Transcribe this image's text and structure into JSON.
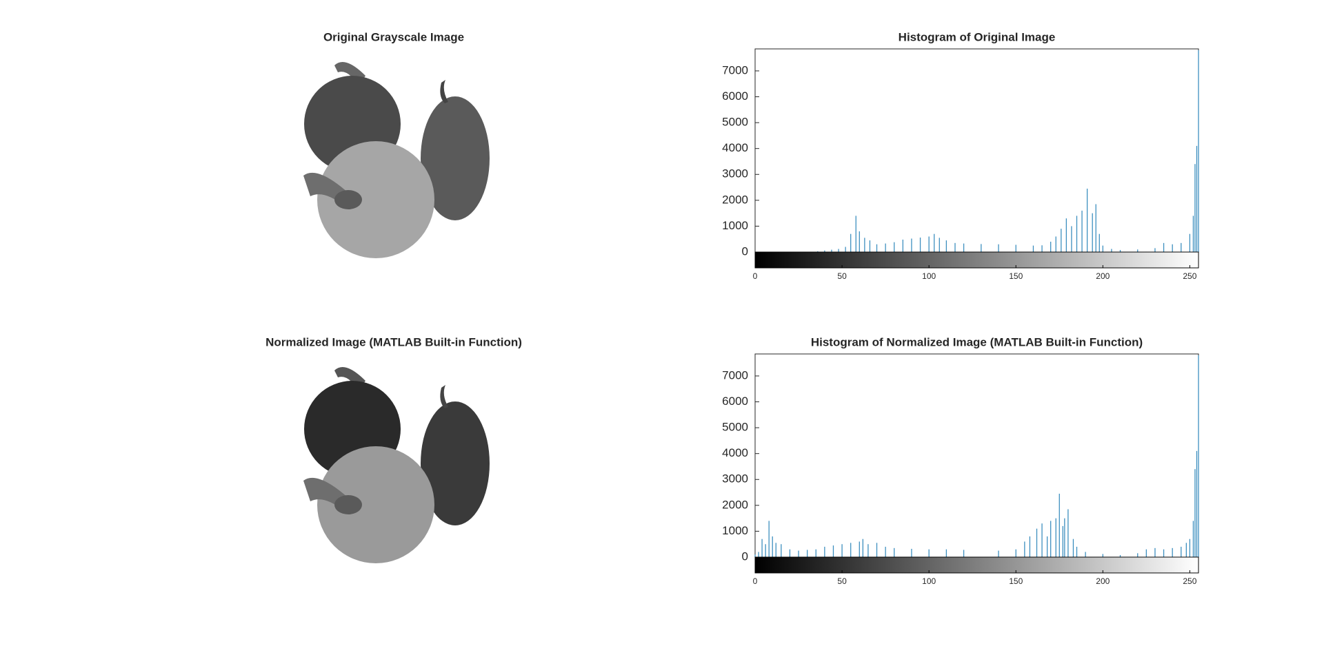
{
  "chart_data": [
    {
      "type": "image",
      "title": "Original Grayscale Image",
      "tone": "original"
    },
    {
      "type": "bar",
      "title": "Histogram of Original Image",
      "color": "#3d8fbf",
      "x": [
        36,
        40,
        44,
        48,
        52,
        55,
        58,
        60,
        63,
        66,
        70,
        75,
        80,
        85,
        90,
        95,
        100,
        103,
        106,
        110,
        115,
        120,
        130,
        140,
        150,
        160,
        165,
        170,
        173,
        176,
        179,
        182,
        185,
        188,
        191,
        194,
        196,
        198,
        200,
        205,
        210,
        220,
        230,
        235,
        240,
        245,
        250,
        252,
        253,
        254,
        255
      ],
      "values": [
        30,
        60,
        90,
        120,
        200,
        700,
        1400,
        800,
        550,
        450,
        300,
        330,
        380,
        480,
        520,
        560,
        600,
        700,
        550,
        450,
        350,
        330,
        310,
        300,
        280,
        250,
        260,
        400,
        600,
        900,
        1300,
        1000,
        1400,
        1600,
        2450,
        1500,
        1850,
        700,
        250,
        120,
        80,
        100,
        150,
        350,
        300,
        350,
        700,
        1400,
        3400,
        4100,
        7800
      ],
      "xlim": [
        0,
        255
      ],
      "xticks": [
        0,
        50,
        100,
        150,
        200,
        250
      ],
      "ylim": [
        0,
        7850
      ],
      "yticks": [
        0,
        1000,
        2000,
        3000,
        4000,
        5000,
        6000,
        7000
      ]
    },
    {
      "type": "image",
      "title": "Normalized Image (MATLAB Built-in Function)",
      "tone": "normalized"
    },
    {
      "type": "bar",
      "title": "Histogram of Normalized Image (MATLAB Built-in Function)",
      "color": "#3d8fbf",
      "x": [
        0,
        2,
        4,
        6,
        8,
        10,
        12,
        15,
        20,
        25,
        30,
        35,
        40,
        45,
        50,
        55,
        60,
        62,
        65,
        70,
        75,
        80,
        90,
        100,
        110,
        120,
        140,
        150,
        155,
        158,
        162,
        165,
        168,
        170,
        173,
        175,
        177,
        178,
        180,
        183,
        185,
        190,
        200,
        210,
        220,
        225,
        230,
        235,
        240,
        245,
        248,
        250,
        252,
        253,
        254,
        255
      ],
      "values": [
        100,
        200,
        700,
        500,
        1400,
        800,
        550,
        500,
        300,
        250,
        280,
        300,
        400,
        450,
        500,
        550,
        600,
        700,
        500,
        550,
        400,
        350,
        320,
        300,
        300,
        280,
        250,
        300,
        600,
        800,
        1100,
        1300,
        800,
        1400,
        1500,
        2450,
        1200,
        1500,
        1850,
        700,
        400,
        200,
        120,
        80,
        150,
        300,
        350,
        300,
        350,
        400,
        550,
        700,
        1400,
        3400,
        4100,
        7800
      ],
      "xlim": [
        0,
        255
      ],
      "xticks": [
        0,
        50,
        100,
        150,
        200,
        250
      ],
      "ylim": [
        0,
        7850
      ],
      "yticks": [
        0,
        1000,
        2000,
        3000,
        4000,
        5000,
        6000,
        7000
      ]
    }
  ]
}
